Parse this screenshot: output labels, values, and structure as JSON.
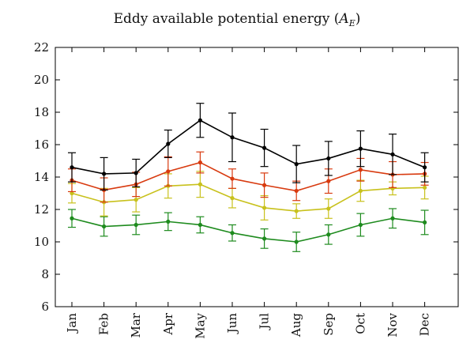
{
  "chart_data": {
    "type": "line",
    "title": {
      "main": "Eddy available potential energy (",
      "symbol": "A",
      "subscript": "E",
      "close": ")"
    },
    "xlabel": "",
    "ylabel": "",
    "categories": [
      "Jan",
      "Feb",
      "Mar",
      "Apr",
      "May",
      "Jun",
      "Jul",
      "Aug",
      "Sep",
      "Oct",
      "Nov",
      "Dec"
    ],
    "ylim": [
      6,
      22
    ],
    "yticks": [
      6,
      8,
      10,
      12,
      14,
      16,
      18,
      20,
      22
    ],
    "grid": false,
    "legend": "none",
    "error_bars": true,
    "series": [
      {
        "color": "#000000",
        "values": [
          14.6,
          14.2,
          14.25,
          16.05,
          17.5,
          16.45,
          15.8,
          14.8,
          15.15,
          15.75,
          15.4,
          14.6
        ],
        "errors": [
          0.9,
          1.0,
          0.85,
          0.85,
          1.05,
          1.5,
          1.15,
          1.15,
          1.05,
          1.1,
          1.25,
          0.9
        ]
      },
      {
        "color": "#d83a0f",
        "values": [
          13.8,
          13.2,
          13.55,
          14.35,
          14.9,
          13.9,
          13.5,
          13.15,
          13.75,
          14.45,
          14.15,
          14.2
        ],
        "errors": [
          0.7,
          0.75,
          0.75,
          0.9,
          0.65,
          0.6,
          0.75,
          0.6,
          0.75,
          0.7,
          0.8,
          0.7
        ]
      },
      {
        "color": "#c8c11c",
        "values": [
          13.0,
          12.45,
          12.6,
          13.45,
          13.55,
          12.7,
          12.1,
          11.9,
          12.05,
          13.15,
          13.3,
          13.35
        ],
        "errors": [
          0.6,
          0.85,
          0.75,
          0.75,
          0.8,
          0.6,
          0.75,
          0.45,
          0.6,
          0.65,
          0.4,
          0.7
        ]
      },
      {
        "color": "#1e8b1e",
        "values": [
          11.45,
          10.95,
          11.05,
          11.25,
          11.05,
          10.55,
          10.2,
          10.0,
          10.45,
          11.05,
          11.45,
          11.2
        ],
        "errors": [
          0.55,
          0.6,
          0.6,
          0.55,
          0.5,
          0.5,
          0.6,
          0.6,
          0.6,
          0.7,
          0.6,
          0.75
        ]
      }
    ]
  }
}
